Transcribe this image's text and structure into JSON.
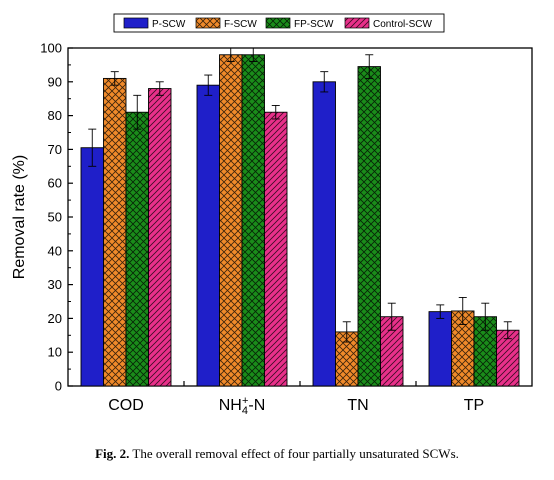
{
  "chart_data": {
    "type": "bar",
    "categories": [
      "COD",
      "NH4+-N",
      "TN",
      "TP"
    ],
    "series": [
      {
        "name": "P-SCW",
        "values": [
          70.5,
          89.0,
          90.0,
          22.0
        ],
        "errors": [
          5.5,
          3.0,
          3.0,
          2.0
        ],
        "color": "#1f1fc9",
        "pattern": "none"
      },
      {
        "name": "F-SCW",
        "values": [
          91.0,
          98.0,
          16.0,
          22.2
        ],
        "errors": [
          2.0,
          2.0,
          3.0,
          4.0
        ],
        "color": "#f08a2a",
        "pattern": "crosshatch"
      },
      {
        "name": "FP-SCW",
        "values": [
          81.0,
          98.0,
          94.5,
          20.5
        ],
        "errors": [
          5.0,
          2.0,
          3.5,
          4.0
        ],
        "color": "#1a8c1a",
        "pattern": "crosshatch"
      },
      {
        "name": "Control-SCW",
        "values": [
          88.0,
          81.0,
          20.5,
          16.5
        ],
        "errors": [
          2.0,
          2.0,
          4.0,
          2.5
        ],
        "color": "#e8308a",
        "pattern": "diagonal"
      }
    ],
    "ylabel": "Removal rate (%)",
    "xlabel": "",
    "ylim": [
      0,
      100
    ],
    "yticks": [
      0,
      10,
      20,
      30,
      40,
      50,
      60,
      70,
      80,
      90,
      100
    ],
    "legend_position": "top",
    "grid": false
  },
  "caption": {
    "label": "Fig. 2.",
    "text": " The overall removal effect of four partially unsaturated SCWs."
  }
}
